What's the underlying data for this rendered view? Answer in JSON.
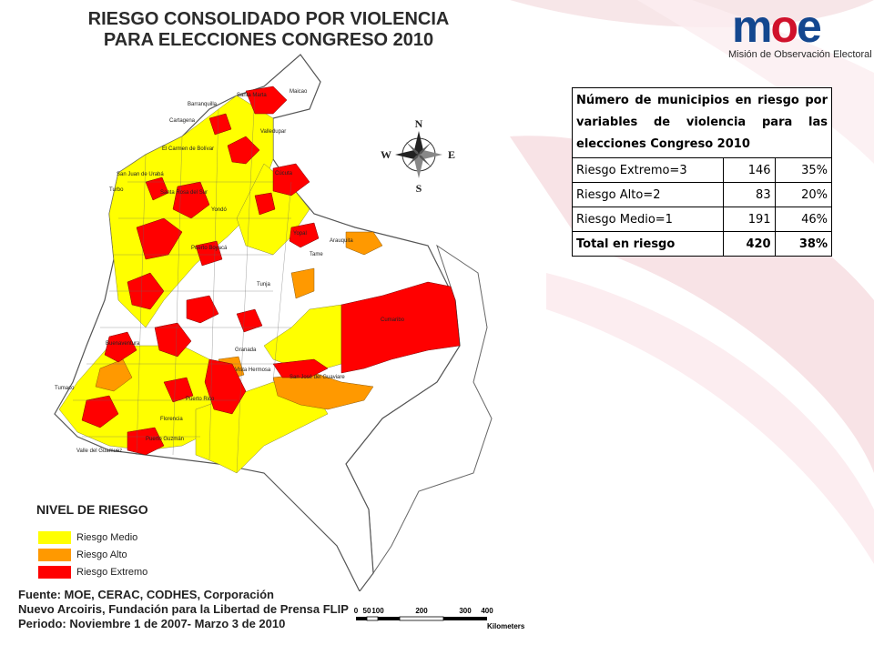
{
  "map_title_line1": "RIESGO CONSOLIDADO POR VIOLENCIA",
  "map_title_line2": "PARA ELECCIONES CONGRESO 2010",
  "logo": {
    "wordmark_left": "m",
    "wordmark_o": "o",
    "wordmark_right": "e",
    "tagline": "Misión de Observación Electoral"
  },
  "compass": {
    "north": "N",
    "south": "S",
    "east": "E",
    "west": "W"
  },
  "table": {
    "header": "Número de municipios en riesgo por variables de violencia para las elecciones Congreso 2010",
    "rows": [
      {
        "label": "Riesgo Extremo=3",
        "count": "146",
        "percent": "35%"
      },
      {
        "label": "Riesgo Alto=2",
        "count": "83",
        "percent": "20%"
      },
      {
        "label": "Riesgo Medio=1",
        "count": "191",
        "percent": "46%"
      }
    ],
    "total": {
      "label": "Total en riesgo",
      "count": "420",
      "percent": "38%"
    }
  },
  "legend": {
    "title": "NIVEL DE RIESGO",
    "items": [
      {
        "label": "Riesgo Medio",
        "color": "#ffff00"
      },
      {
        "label": "Riesgo Alto",
        "color": "#ff9900"
      },
      {
        "label": "Riesgo Extremo",
        "color": "#ff0000"
      }
    ]
  },
  "source": {
    "line1": "Fuente: MOE, CERAC, CODHES, Corporación",
    "line2": "Nuevo Arcoiris, Fundación para la Libertad de Prensa FLIP",
    "line3": "Periodo: Noviembre 1 de 2007- Marzo 3 de 2010"
  },
  "scale": {
    "ticks": [
      "0",
      "50",
      "100",
      "200",
      "300",
      "400"
    ],
    "unit": "Kilometers"
  },
  "place_labels": [
    "Barranquilla",
    "Santa Marta",
    "Maicao",
    "Cartagena",
    "Valledupar",
    "El Carmen de Bolívar",
    "San Juan de Urabá",
    "Cúcuta",
    "Turbo",
    "Santa Rosa del Sur",
    "Yondó",
    "Tame",
    "Arauquita",
    "Puerto Boyacá",
    "Yopal",
    "Tunja",
    "Cumaribo",
    "Granada",
    "Vista Hermosa",
    "San José del Guaviare",
    "Buenaventura",
    "Puerto Rico",
    "Tumaco",
    "Valle del Guamuez",
    "Florencia",
    "Puerto Guzmán"
  ]
}
